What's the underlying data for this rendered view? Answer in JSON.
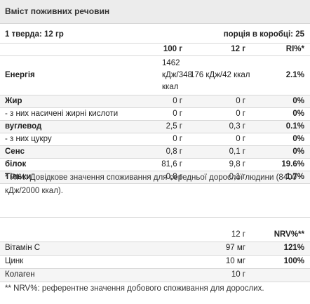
{
  "title": "Вміст поживних речовин",
  "serving": {
    "left": "1 тверда: 12 гр",
    "right": "порція в коробці: 25"
  },
  "columns": {
    "c1": "100 г",
    "c2": "12 г",
    "c3": "RI%*"
  },
  "energy": {
    "label": "Енергія",
    "c1_l1": "1462",
    "c1_l2": "кДж/348",
    "c1_l3": "ккал",
    "c2": "176 кДж/42 ккал",
    "c3": "2.1%"
  },
  "rows": [
    {
      "label": "Жир",
      "c1": "0 г",
      "c2": "0 г",
      "c3": "0%",
      "bold": true
    },
    {
      "label": "- з них насичені жирні кислоти",
      "c1": "0 г",
      "c2": "0 г",
      "c3": "0%",
      "bold": false
    },
    {
      "label": "вуглевод",
      "c1": "2,5 г",
      "c2": "0,3 г",
      "c3": "0.1%",
      "bold": true
    },
    {
      "label": "- з них цукру",
      "c1": "0 г",
      "c2": "0 г",
      "c3": "0%",
      "bold": false
    },
    {
      "label": "Сенс",
      "c1": "0,8 г",
      "c2": "0,1 г",
      "c3": "0%",
      "bold": true
    },
    {
      "label": "білок",
      "c1": "81,6 г",
      "c2": "9,8 г",
      "c3": "19.6%",
      "bold": true
    },
    {
      "label": "Тільки",
      "c1": "0,8 г",
      "c2": "0,1 г",
      "c3": "1.7%",
      "bold": true
    }
  ],
  "ri_note": "* RI%: Довідкове значення споживання для середньої дорослої людини (8400 кДж/2000 ккал).",
  "vitamins": {
    "header": {
      "c2": "12 г",
      "c3": "NRV%**"
    },
    "rows": [
      {
        "label": "Вітамін С",
        "c2": "97 мг",
        "c3": "121%"
      },
      {
        "label": "Цинк",
        "c2": "10 мг",
        "c3": "100%"
      },
      {
        "label": "Колаген",
        "c2": "10 г",
        "c3": ""
      }
    ],
    "note": "** NRV%: референтне значення добового споживання для дорослих."
  }
}
